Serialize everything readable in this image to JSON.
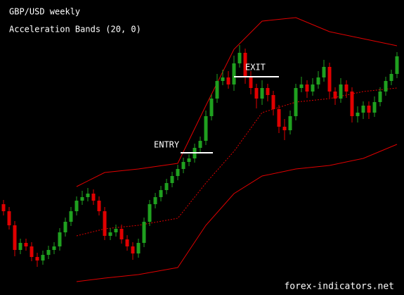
{
  "chart_data": {
    "type": "candlestick",
    "title": "GBP/USD weekly",
    "subtitle": "Acceleration Bands (20, 0)",
    "annotations": [
      "ENTRY",
      "EXIT"
    ],
    "watermark": "forex-indicators.net",
    "ylim": [
      0,
      419
    ],
    "up_color": "#1fa01f",
    "down_color": "#e00000",
    "open": [
      129,
      119,
      99,
      64,
      74,
      69,
      54,
      49,
      57,
      64,
      69,
      89,
      104,
      119,
      134,
      139,
      144,
      134,
      119,
      84,
      89,
      94,
      79,
      69,
      59,
      74,
      104,
      129,
      139,
      149,
      159,
      169,
      179,
      189,
      194,
      209,
      219,
      254,
      279,
      304,
      309,
      299,
      329,
      344,
      309,
      294,
      279,
      294,
      284,
      264,
      239,
      234,
      254,
      294,
      299,
      289,
      299,
      309,
      324,
      289,
      279,
      299,
      289,
      254,
      259,
      269,
      259,
      274,
      289,
      304,
      314
    ],
    "high": [
      135,
      125,
      105,
      80,
      80,
      75,
      60,
      63,
      70,
      75,
      95,
      110,
      125,
      140,
      148,
      152,
      150,
      140,
      125,
      95,
      100,
      100,
      85,
      75,
      80,
      110,
      135,
      145,
      155,
      165,
      175,
      185,
      195,
      200,
      215,
      225,
      262,
      285,
      314,
      320,
      318,
      340,
      355,
      350,
      318,
      300,
      305,
      300,
      290,
      270,
      250,
      262,
      300,
      310,
      305,
      308,
      318,
      334,
      330,
      295,
      308,
      305,
      295,
      268,
      275,
      275,
      282,
      295,
      310,
      320,
      345
    ],
    "low": [
      113,
      93,
      55,
      58,
      63,
      48,
      40,
      43,
      51,
      58,
      63,
      83,
      98,
      113,
      128,
      133,
      128,
      113,
      78,
      78,
      83,
      73,
      63,
      50,
      53,
      68,
      98,
      123,
      133,
      143,
      153,
      163,
      173,
      183,
      188,
      203,
      213,
      248,
      273,
      298,
      293,
      290,
      323,
      300,
      285,
      265,
      270,
      275,
      255,
      230,
      220,
      228,
      248,
      288,
      280,
      283,
      293,
      303,
      280,
      270,
      273,
      280,
      245,
      245,
      250,
      250,
      253,
      268,
      283,
      298,
      308
    ],
    "close": [
      119,
      99,
      64,
      74,
      69,
      54,
      49,
      57,
      64,
      69,
      89,
      104,
      119,
      134,
      139,
      144,
      134,
      119,
      84,
      89,
      94,
      79,
      69,
      59,
      74,
      104,
      129,
      139,
      149,
      159,
      169,
      179,
      189,
      194,
      209,
      219,
      254,
      279,
      304,
      309,
      299,
      329,
      344,
      309,
      294,
      279,
      294,
      284,
      264,
      239,
      234,
      254,
      294,
      299,
      289,
      299,
      309,
      324,
      289,
      279,
      299,
      289,
      254,
      259,
      269,
      259,
      274,
      289,
      304,
      314,
      339
    ],
    "band_x": [
      13,
      18,
      24,
      31,
      36,
      41,
      46,
      52,
      58,
      64,
      70
    ],
    "bands": [
      {
        "color": "#e00000",
        "dash": false,
        "values": [
          154,
          174,
          179,
          187,
          269,
          349,
          389,
          394,
          374,
          364,
          354
        ]
      },
      {
        "color": "#e00000",
        "dash": true,
        "values": [
          84,
          94,
          99,
          109,
          159,
          204,
          259,
          274,
          279,
          289,
          294
        ]
      },
      {
        "color": "#e00000",
        "dash": false,
        "values": [
          19,
          24,
          29,
          39,
          99,
          144,
          169,
          179,
          184,
          194,
          214
        ]
      }
    ]
  }
}
